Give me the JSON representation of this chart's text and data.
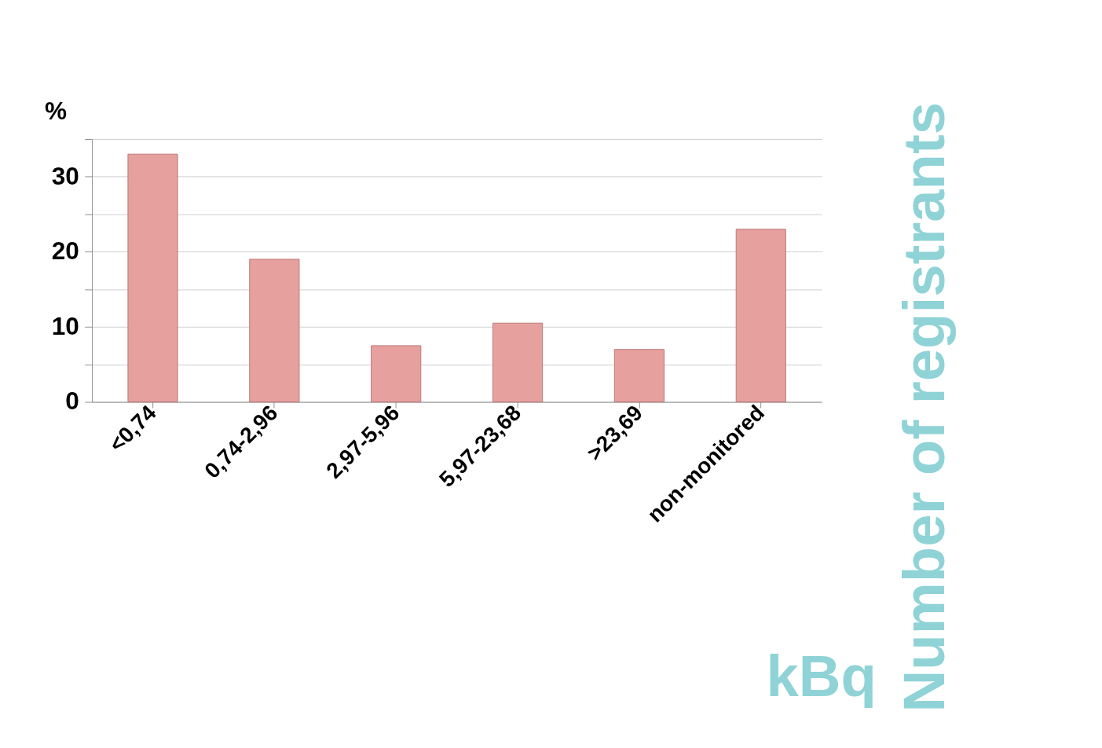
{
  "chart_data": {
    "type": "bar",
    "ylabel": "%",
    "xlabel": "kBq",
    "y2label": "Number of registrants",
    "categories": [
      "<0,74",
      "0,74-2,96",
      "2,97-5,96",
      "5,97-23,68",
      ">23,69",
      "non-monitored"
    ],
    "series": [
      {
        "color": "#e6a19f",
        "values": [
          33,
          19,
          7.5,
          10.5,
          7,
          23
        ]
      }
    ],
    "ylim": [
      0,
      35
    ],
    "yticks": [
      0,
      {
        "value": 5,
        "label": null
      },
      10,
      {
        "value": 15,
        "label": null
      },
      20,
      {
        "value": 25,
        "label": null
      },
      30,
      {
        "value": 35,
        "label": null
      }
    ],
    "grid": "y"
  }
}
